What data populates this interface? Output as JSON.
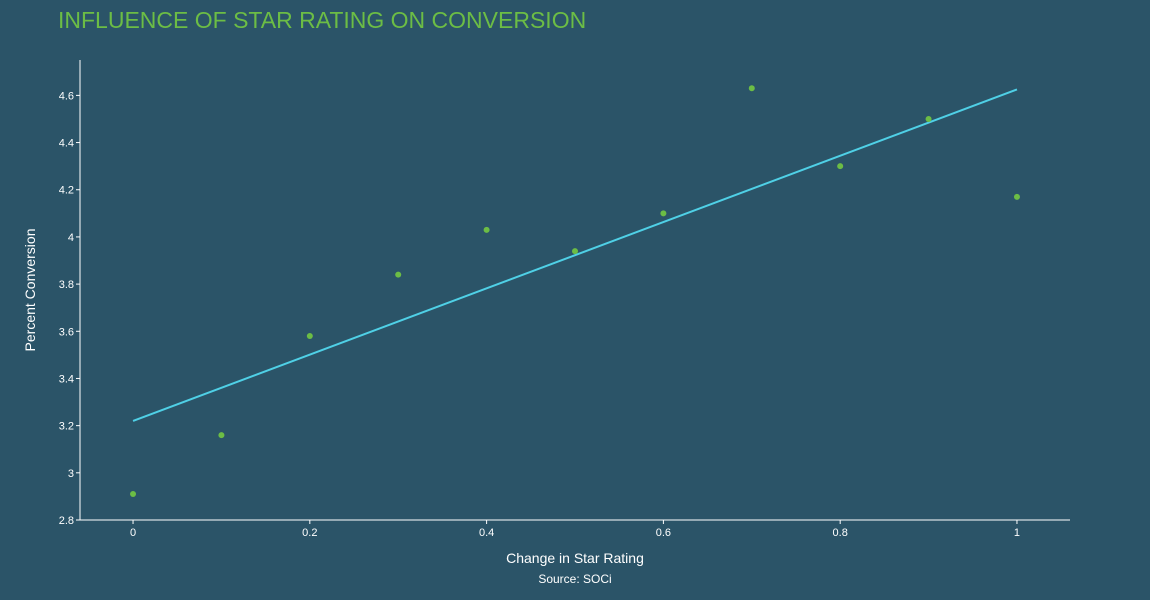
{
  "chart_data": {
    "type": "scatter",
    "title": "INFLUENCE OF STAR RATING ON CONVERSION",
    "xlabel": "Change in Star Rating",
    "ylabel": "Percent Conversion",
    "source": "Source: SOCi",
    "xlim": [
      -0.06,
      1.06
    ],
    "ylim": [
      2.8,
      4.75
    ],
    "x_ticks": [
      0,
      0.2,
      0.4,
      0.6,
      0.8,
      1
    ],
    "x_tick_labels": [
      "0",
      "0.2",
      "0.4",
      "0.6",
      "0.8",
      "1"
    ],
    "y_ticks": [
      2.8,
      3,
      3.2,
      3.4,
      3.6,
      3.8,
      4,
      4.2,
      4.4,
      4.6
    ],
    "y_tick_labels": [
      "2.8",
      "3",
      "3.2",
      "3.4",
      "3.6",
      "3.8",
      "4",
      "4.2",
      "4.4",
      "4.6"
    ],
    "grid": false,
    "points": {
      "x": [
        0,
        0.1,
        0.2,
        0.3,
        0.4,
        0.5,
        0.6,
        0.7,
        0.8,
        0.9,
        1.0
      ],
      "y": [
        2.91,
        3.16,
        3.58,
        3.84,
        4.03,
        3.94,
        4.1,
        4.63,
        4.3,
        4.5,
        4.17
      ]
    },
    "trendline": {
      "x": [
        0,
        1
      ],
      "y": [
        3.22,
        4.625
      ]
    },
    "colors": {
      "background": "#2b5468",
      "title": "#6cbd45",
      "points": "#6cbd45",
      "trendline": "#4fd0e6",
      "axis": "#ffffff",
      "text": "#ffffff"
    }
  }
}
